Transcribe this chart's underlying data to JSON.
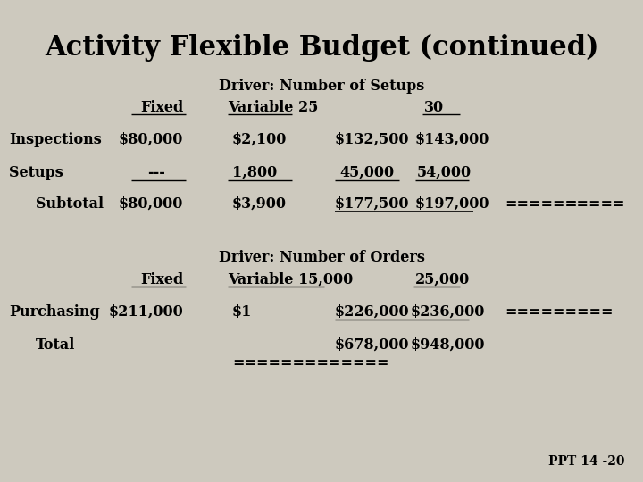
{
  "title": "Activity Flexible Budget (continued)",
  "bg": "#cdc9be",
  "title_fs": 22,
  "body_fs": 11.5,
  "font": "DejaVu Serif",
  "s1_header": "Driver: Number of Setups",
  "s1_hdr_fixed": "Fixed",
  "s1_hdr_var": "Variable 25",
  "s1_hdr_30": "30",
  "insp_label": "Inspections",
  "insp_fixed": "$80,000",
  "insp_var": "$2,100",
  "insp_25": "$132,500",
  "insp_30": "$143,000",
  "setups_label": "Setups",
  "setups_fixed": "---",
  "setups_var": "1,800",
  "setups_25": "45,000",
  "setups_30": "54,000",
  "sub_label": "Subtotal",
  "sub_fixed": "$80,000",
  "sub_var": "$3,900",
  "sub_25": "$177,500",
  "sub_30": "$197,000",
  "sub_eq1": "======",
  "sub_eq2": "=====",
  "s2_header": "Driver: Number of Orders",
  "s2_hdr_fixed": "Fixed",
  "s2_hdr_var": "Variable 15,000",
  "s2_hdr_25": "25,000",
  "purch_label": "Purchasing",
  "purch_fixed": "$211,000",
  "purch_var": "$1",
  "purch_15": "$226,000",
  "purch_25": "$236,000",
  "purch_eq": "=========",
  "total_label": "Total",
  "total_15": "$678,000",
  "total_25": "$948,000",
  "total_eq": "=============",
  "footer": "PPT 14 -20"
}
